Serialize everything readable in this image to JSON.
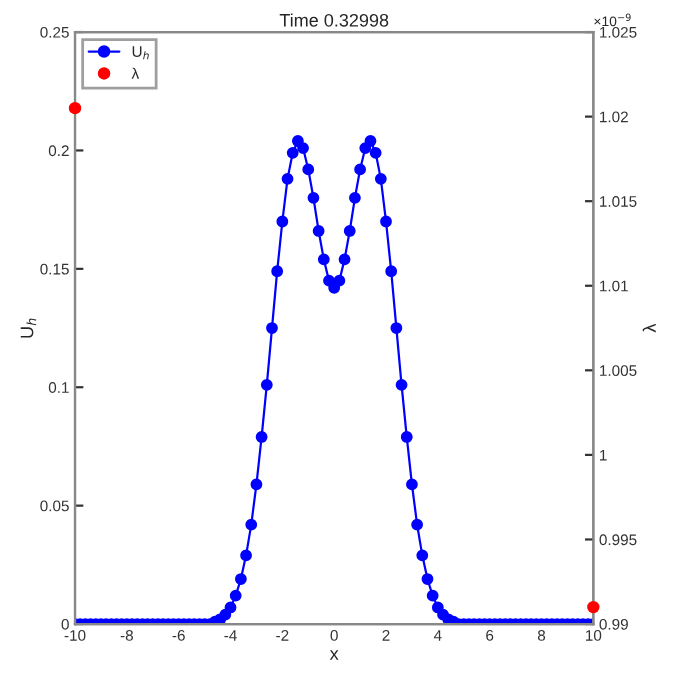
{
  "chart_data": {
    "type": "line",
    "title": "Time 0.32998",
    "xlabel": "x",
    "ylabel": "U$_{h}$",
    "y2label": "λ",
    "annotations": [
      "×10$^{−9}$"
    ],
    "series": [
      {
        "name": "U$_{h}$",
        "color": "#0000ff",
        "marker": "circle",
        "line_style": "solid",
        "x": [
          -10,
          -9.8,
          -9.6,
          -9.4,
          -9.2,
          -9,
          -8.8,
          -8.6,
          -8.4,
          -8.2,
          -8,
          -7.8,
          -7.6,
          -7.4,
          -7.2,
          -7,
          -6.8,
          -6.6,
          -6.4,
          -6.2,
          -6,
          -5.8,
          -5.6,
          -5.4,
          -5.2,
          -5,
          -4.8,
          -4.6,
          -4.4,
          -4.2,
          -4,
          -3.8,
          -3.6,
          -3.4,
          -3.2,
          -3,
          -2.8,
          -2.6,
          -2.4,
          -2.2,
          -2,
          -1.8,
          -1.6,
          -1.4,
          -1.2,
          -1,
          -0.8,
          -0.6,
          -0.4,
          -0.2,
          0,
          0.2,
          0.4,
          0.6,
          0.8,
          1,
          1.2,
          1.4,
          1.6,
          1.8,
          2,
          2.2,
          2.4,
          2.6,
          2.8,
          3,
          3.2,
          3.4,
          3.6,
          3.8,
          4,
          4.2,
          4.4,
          4.6,
          4.8,
          5,
          5.2,
          5.4,
          5.6,
          5.8,
          6,
          6.2,
          6.4,
          6.6,
          6.8,
          7,
          7.2,
          7.4,
          7.6,
          7.8,
          8,
          8.2,
          8.4,
          8.6,
          8.8,
          9,
          9.2,
          9.4,
          9.6,
          9.8,
          10
        ],
        "values": [
          0,
          0,
          0,
          0,
          0,
          0,
          0,
          0,
          0,
          0,
          0,
          0,
          0,
          0,
          0,
          0,
          0,
          0,
          0,
          0,
          0,
          0,
          0,
          0,
          0,
          0,
          0,
          0.001,
          0.002,
          0.004,
          0.007,
          0.012,
          0.019,
          0.029,
          0.042,
          0.059,
          0.079,
          0.101,
          0.125,
          0.149,
          0.17,
          0.188,
          0.199,
          0.204,
          0.201,
          0.192,
          0.18,
          0.166,
          0.154,
          0.145,
          0.142,
          0.145,
          0.154,
          0.166,
          0.18,
          0.192,
          0.201,
          0.204,
          0.199,
          0.188,
          0.17,
          0.149,
          0.125,
          0.101,
          0.079,
          0.059,
          0.042,
          0.029,
          0.019,
          0.012,
          0.007,
          0.004,
          0.002,
          0.001,
          0,
          0,
          0,
          0,
          0,
          0,
          0,
          0,
          0,
          0,
          0,
          0,
          0,
          0,
          0,
          0,
          0,
          0,
          0,
          0,
          0,
          0,
          0,
          0,
          0,
          0,
          0
        ]
      },
      {
        "name": "λ",
        "type": "scatter",
        "axis": "y2",
        "color": "#ff0000",
        "marker": "circle",
        "x": [
          -10,
          10
        ],
        "values": [
          1.0205,
          0.991
        ]
      }
    ],
    "xlim": [
      -10,
      10
    ],
    "xticks": [
      -10,
      -8,
      -6,
      -4,
      -2,
      0,
      2,
      4,
      6,
      8,
      10
    ],
    "ylim": [
      0,
      0.25
    ],
    "yticks": [
      0,
      0.05,
      0.1,
      0.15,
      0.2,
      0.25
    ],
    "y2lim": [
      0.99,
      1.025
    ],
    "y2ticks": [
      0.99,
      0.995,
      1,
      1.005,
      1.01,
      1.015,
      1.02,
      1.025
    ],
    "legend": "top left",
    "grid": false
  }
}
